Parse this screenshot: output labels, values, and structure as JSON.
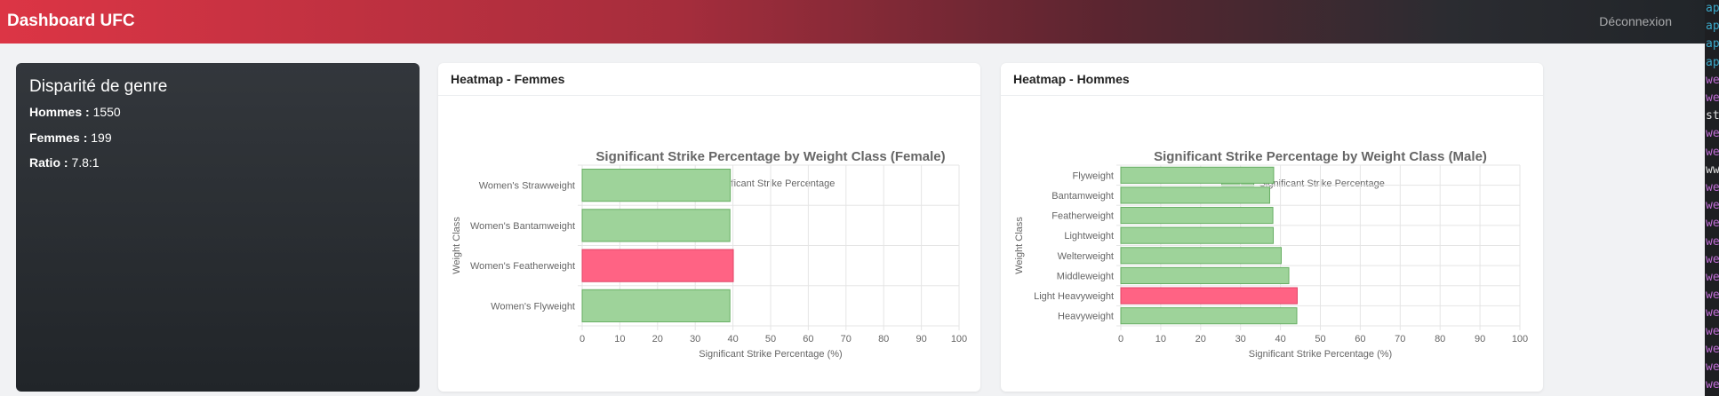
{
  "nav": {
    "brand": "Dashboard UFC",
    "logout": "Déconnexion"
  },
  "gender_card": {
    "title": "Disparité de genre",
    "men_label": "Hommes :",
    "men_value": "1550",
    "women_label": "Femmes :",
    "women_value": "199",
    "ratio_label": "Ratio :",
    "ratio_value": "7.8:1"
  },
  "female_card": {
    "header": "Heatmap - Femmes"
  },
  "male_card": {
    "header": "Heatmap - Hommes"
  },
  "code_strip": {
    "lines": [
      "ap",
      "ap",
      "ap",
      "ap",
      "we",
      "we",
      "st",
      "we",
      "we",
      "ww",
      "we",
      "we",
      "we",
      "we",
      "we",
      "we",
      "we",
      "we",
      "we",
      "we",
      "we",
      "we"
    ],
    "colors": [
      "#3aa7c8",
      "#3aa7c8",
      "#3aa7c8",
      "#3aa7c8",
      "#c06ed6",
      "#c06ed6",
      "#e0e0e0",
      "#c06ed6",
      "#c06ed6",
      "#e0e0e0",
      "#c06ed6",
      "#c06ed6",
      "#c06ed6",
      "#c06ed6",
      "#c06ed6",
      "#c06ed6",
      "#c06ed6",
      "#c06ed6",
      "#c06ed6",
      "#c06ed6",
      "#c06ed6",
      "#c06ed6"
    ]
  },
  "colors": {
    "normal_fill": "#9ed39a",
    "normal_stroke": "#67ae63",
    "highlight_fill": "#ff6384",
    "highlight_stroke": "#e04466"
  },
  "chart_data": [
    {
      "type": "bar",
      "orientation": "horizontal",
      "title": "Significant Strike Percentage by Weight Class (Female)",
      "xlabel": "Significant Strike Percentage (%)",
      "ylabel": "Weight Class",
      "legend": "Significant Strike Percentage",
      "legend_position": "top",
      "categories": [
        "Women's Strawweight",
        "Women's Bantamweight",
        "Women's Featherweight",
        "Women's Flyweight"
      ],
      "values": [
        39.3,
        39.2,
        40.1,
        39.2
      ],
      "highlight_index": 2,
      "xlim": [
        0,
        100
      ],
      "xticks": [
        "0",
        "10",
        "20",
        "30",
        "40",
        "50",
        "60",
        "70",
        "80",
        "90",
        "100"
      ],
      "grid": true
    },
    {
      "type": "bar",
      "orientation": "horizontal",
      "title": "Significant Strike Percentage by Weight Class (Male)",
      "xlabel": "Significant Strike Percentage (%)",
      "ylabel": "Weight Class",
      "legend": "Significant Strike Percentage",
      "legend_position": "top",
      "categories": [
        "Flyweight",
        "Bantamweight",
        "Featherweight",
        "Lightweight",
        "Welterweight",
        "Middleweight",
        "Light Heavyweight",
        "Heavyweight"
      ],
      "values": [
        38.3,
        37.3,
        38.1,
        38.2,
        40.2,
        42.1,
        44.2,
        44.1
      ],
      "highlight_index": 6,
      "xlim": [
        0,
        100
      ],
      "xticks": [
        "0",
        "10",
        "20",
        "30",
        "40",
        "50",
        "60",
        "70",
        "80",
        "90",
        "100"
      ],
      "grid": true
    }
  ]
}
